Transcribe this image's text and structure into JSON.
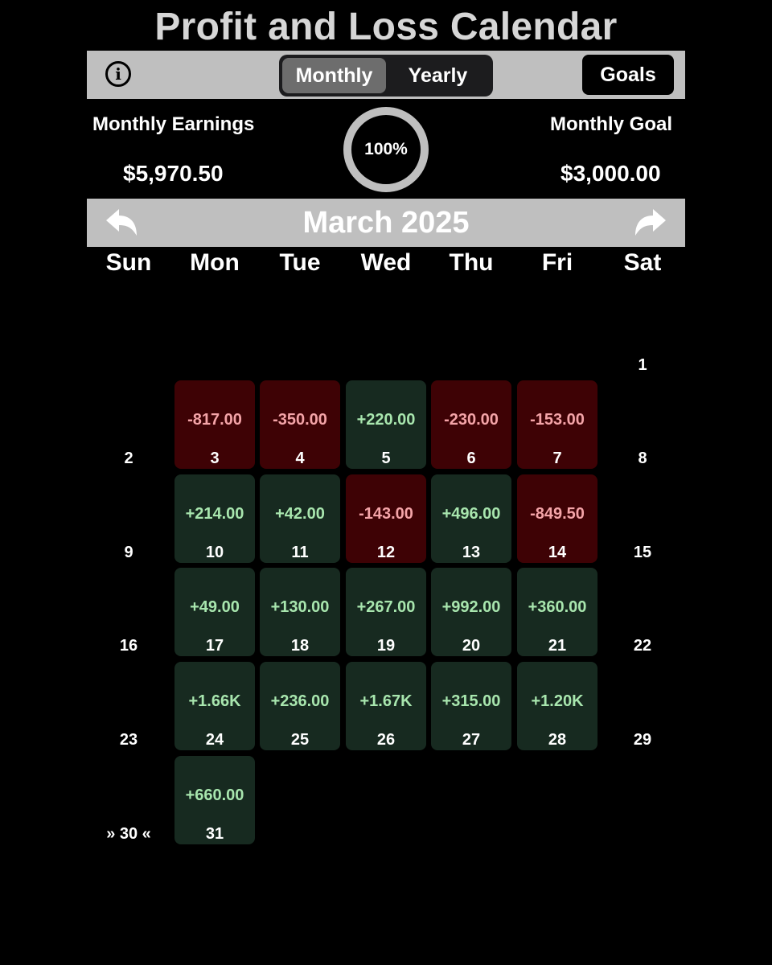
{
  "app": {
    "title": "Profit and Loss Calendar"
  },
  "toolbar": {
    "info_icon": "info-circle-icon",
    "info_glyph": "i",
    "view_options": [
      "Monthly",
      "Yearly"
    ],
    "selected_view": "Monthly",
    "goals_label": "Goals"
  },
  "summary": {
    "earnings_label": "Monthly Earnings",
    "earnings_value": "$5,970.50",
    "goal_label": "Monthly Goal",
    "goal_value": "$3,000.00",
    "progress_text": "100%",
    "progress_fraction": 1.0
  },
  "calendar": {
    "month_label": "March 2025",
    "prev_icon": "arrow-back-icon",
    "next_icon": "arrow-forward-icon",
    "weekdays": [
      "Sun",
      "Mon",
      "Tue",
      "Wed",
      "Thu",
      "Fri",
      "Sat"
    ],
    "first_weekday_index": 6,
    "days": [
      {
        "day": "1"
      },
      {
        "day": "2"
      },
      {
        "day": "3",
        "amount": "-817.00",
        "status": "loss"
      },
      {
        "day": "4",
        "amount": "-350.00",
        "status": "loss"
      },
      {
        "day": "5",
        "amount": "+220.00",
        "status": "profit"
      },
      {
        "day": "6",
        "amount": "-230.00",
        "status": "loss"
      },
      {
        "day": "7",
        "amount": "-153.00",
        "status": "loss"
      },
      {
        "day": "8"
      },
      {
        "day": "9"
      },
      {
        "day": "10",
        "amount": "+214.00",
        "status": "profit"
      },
      {
        "day": "11",
        "amount": "+42.00",
        "status": "profit"
      },
      {
        "day": "12",
        "amount": "-143.00",
        "status": "loss"
      },
      {
        "day": "13",
        "amount": "+496.00",
        "status": "profit"
      },
      {
        "day": "14",
        "amount": "-849.50",
        "status": "loss"
      },
      {
        "day": "15"
      },
      {
        "day": "16"
      },
      {
        "day": "17",
        "amount": "+49.00",
        "status": "profit"
      },
      {
        "day": "18",
        "amount": "+130.00",
        "status": "profit"
      },
      {
        "day": "19",
        "amount": "+267.00",
        "status": "profit"
      },
      {
        "day": "20",
        "amount": "+992.00",
        "status": "profit"
      },
      {
        "day": "21",
        "amount": "+360.00",
        "status": "profit"
      },
      {
        "day": "22"
      },
      {
        "day": "23"
      },
      {
        "day": "24",
        "amount": "+1.66K",
        "status": "profit"
      },
      {
        "day": "25",
        "amount": "+236.00",
        "status": "profit"
      },
      {
        "day": "26",
        "amount": "+1.67K",
        "status": "profit"
      },
      {
        "day": "27",
        "amount": "+315.00",
        "status": "profit"
      },
      {
        "day": "28",
        "amount": "+1.20K",
        "status": "profit"
      },
      {
        "day": "29"
      },
      {
        "day": "30",
        "display": "» 30 «"
      },
      {
        "day": "31",
        "amount": "+660.00",
        "status": "profit"
      }
    ]
  },
  "colors": {
    "background": "#000000",
    "bar_gray": "#bfbfbf",
    "profit_cell": "#172a20",
    "profit_text": "#a8e6ae",
    "loss_cell": "#3e0205",
    "loss_text": "#f4a4a8",
    "ring": "#bfbfbf"
  }
}
